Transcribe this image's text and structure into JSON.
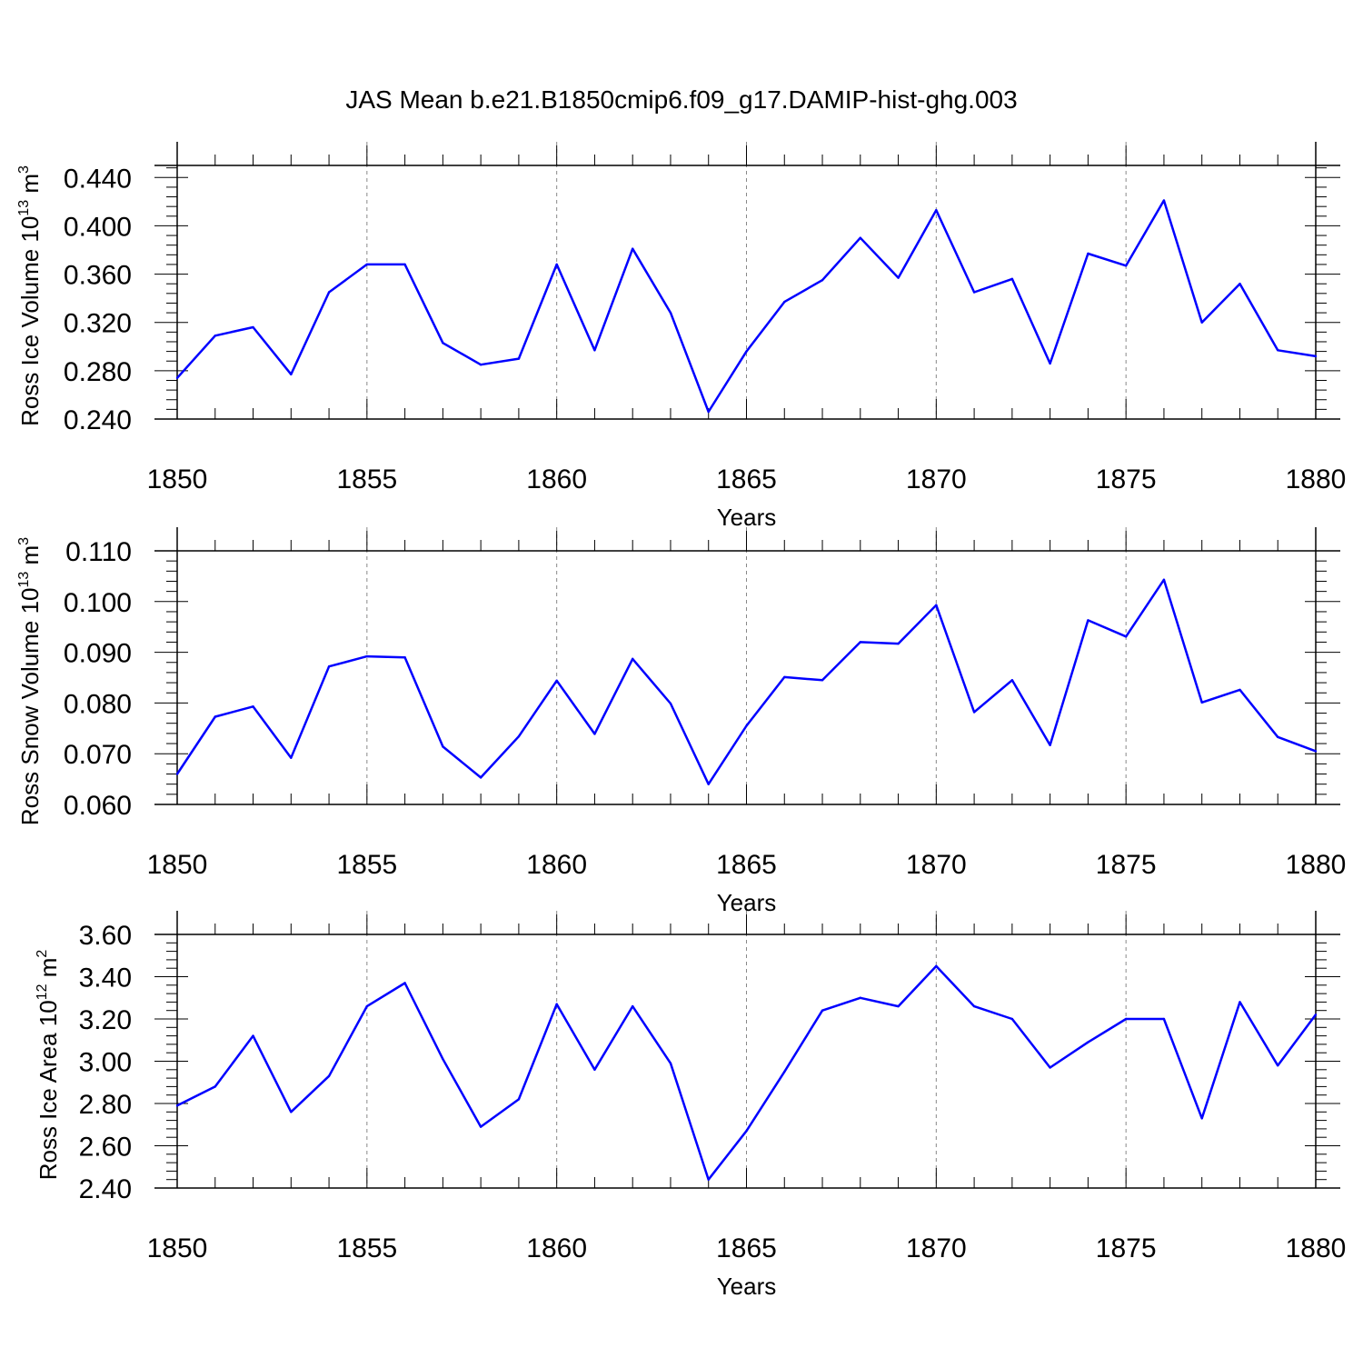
{
  "title": "JAS Mean b.e21.B1850cmip6.f09_g17.DAMIP-hist-ghg.003",
  "line_color": "#0000ff",
  "chart_data": [
    {
      "type": "line",
      "title": "JAS Mean b.e21.B1850cmip6.f09_g17.DAMIP-hist-ghg.003",
      "xlabel": "Years",
      "ylabel": {
        "text": "Ross Ice Volume 10",
        "exp": "13",
        "unit": " m",
        "unit_exp": "3"
      },
      "x": [
        1850,
        1851,
        1852,
        1853,
        1854,
        1855,
        1856,
        1857,
        1858,
        1859,
        1860,
        1861,
        1862,
        1863,
        1864,
        1865,
        1866,
        1867,
        1868,
        1869,
        1870,
        1871,
        1872,
        1873,
        1874,
        1875,
        1876,
        1877,
        1878,
        1879,
        1880
      ],
      "y": [
        0.274,
        0.309,
        0.316,
        0.277,
        0.345,
        0.368,
        0.368,
        0.303,
        0.285,
        0.29,
        0.368,
        0.297,
        0.381,
        0.328,
        0.246,
        0.296,
        0.337,
        0.355,
        0.39,
        0.357,
        0.413,
        0.345,
        0.356,
        0.286,
        0.377,
        0.367,
        0.421,
        0.32,
        0.352,
        0.297,
        0.292
      ],
      "xlim": [
        1850,
        1880
      ],
      "ylim": [
        0.24,
        0.45
      ],
      "xticks": [
        "1850",
        "1855",
        "1860",
        "1865",
        "1870",
        "1875",
        "1880"
      ],
      "yticks": [
        "0.240",
        "0.280",
        "0.320",
        "0.360",
        "0.400",
        "0.440"
      ],
      "grid": "vertical dashed at major x ticks"
    },
    {
      "type": "line",
      "xlabel": "Years",
      "ylabel": {
        "text": "Ross Snow Volume 10",
        "exp": "13",
        "unit": " m",
        "unit_exp": "3"
      },
      "x": [
        1850,
        1851,
        1852,
        1853,
        1854,
        1855,
        1856,
        1857,
        1858,
        1859,
        1860,
        1861,
        1862,
        1863,
        1864,
        1865,
        1866,
        1867,
        1868,
        1869,
        1870,
        1871,
        1872,
        1873,
        1874,
        1875,
        1876,
        1877,
        1878,
        1879,
        1880
      ],
      "y": [
        0.066,
        0.0773,
        0.0793,
        0.0692,
        0.0872,
        0.0892,
        0.089,
        0.0714,
        0.0653,
        0.0734,
        0.0844,
        0.0739,
        0.0887,
        0.0799,
        0.064,
        0.0755,
        0.0851,
        0.0845,
        0.092,
        0.0917,
        0.0993,
        0.0782,
        0.0845,
        0.0717,
        0.0963,
        0.0931,
        0.1043,
        0.0801,
        0.0826,
        0.0733,
        0.0705
      ],
      "xlim": [
        1850,
        1880
      ],
      "ylim": [
        0.06,
        0.11
      ],
      "xticks": [
        "1850",
        "1855",
        "1860",
        "1865",
        "1870",
        "1875",
        "1880"
      ],
      "yticks": [
        "0.060",
        "0.070",
        "0.080",
        "0.090",
        "0.100",
        "0.110"
      ],
      "grid": "vertical dashed at major x ticks"
    },
    {
      "type": "line",
      "xlabel": "Years",
      "ylabel": {
        "text": "Ross Ice Area 10",
        "exp": "12",
        "unit": " m",
        "unit_exp": "2"
      },
      "x": [
        1850,
        1851,
        1852,
        1853,
        1854,
        1855,
        1856,
        1857,
        1858,
        1859,
        1860,
        1861,
        1862,
        1863,
        1864,
        1865,
        1866,
        1867,
        1868,
        1869,
        1870,
        1871,
        1872,
        1873,
        1874,
        1875,
        1876,
        1877,
        1878,
        1879,
        1880
      ],
      "y": [
        2.79,
        2.88,
        3.12,
        2.76,
        2.93,
        3.26,
        3.37,
        3.01,
        2.69,
        2.82,
        3.27,
        2.96,
        3.26,
        2.99,
        2.44,
        2.67,
        2.95,
        3.24,
        3.3,
        3.26,
        3.45,
        3.26,
        3.2,
        2.97,
        3.09,
        3.2,
        3.2,
        2.73,
        3.28,
        2.98,
        3.22
      ],
      "xlim": [
        1850,
        1880
      ],
      "ylim": [
        2.4,
        3.6
      ],
      "xticks": [
        "1850",
        "1855",
        "1860",
        "1865",
        "1870",
        "1875",
        "1880"
      ],
      "yticks": [
        "2.40",
        "2.60",
        "2.80",
        "3.00",
        "3.20",
        "3.40",
        "3.60"
      ],
      "grid": "vertical dashed at major x ticks"
    }
  ]
}
